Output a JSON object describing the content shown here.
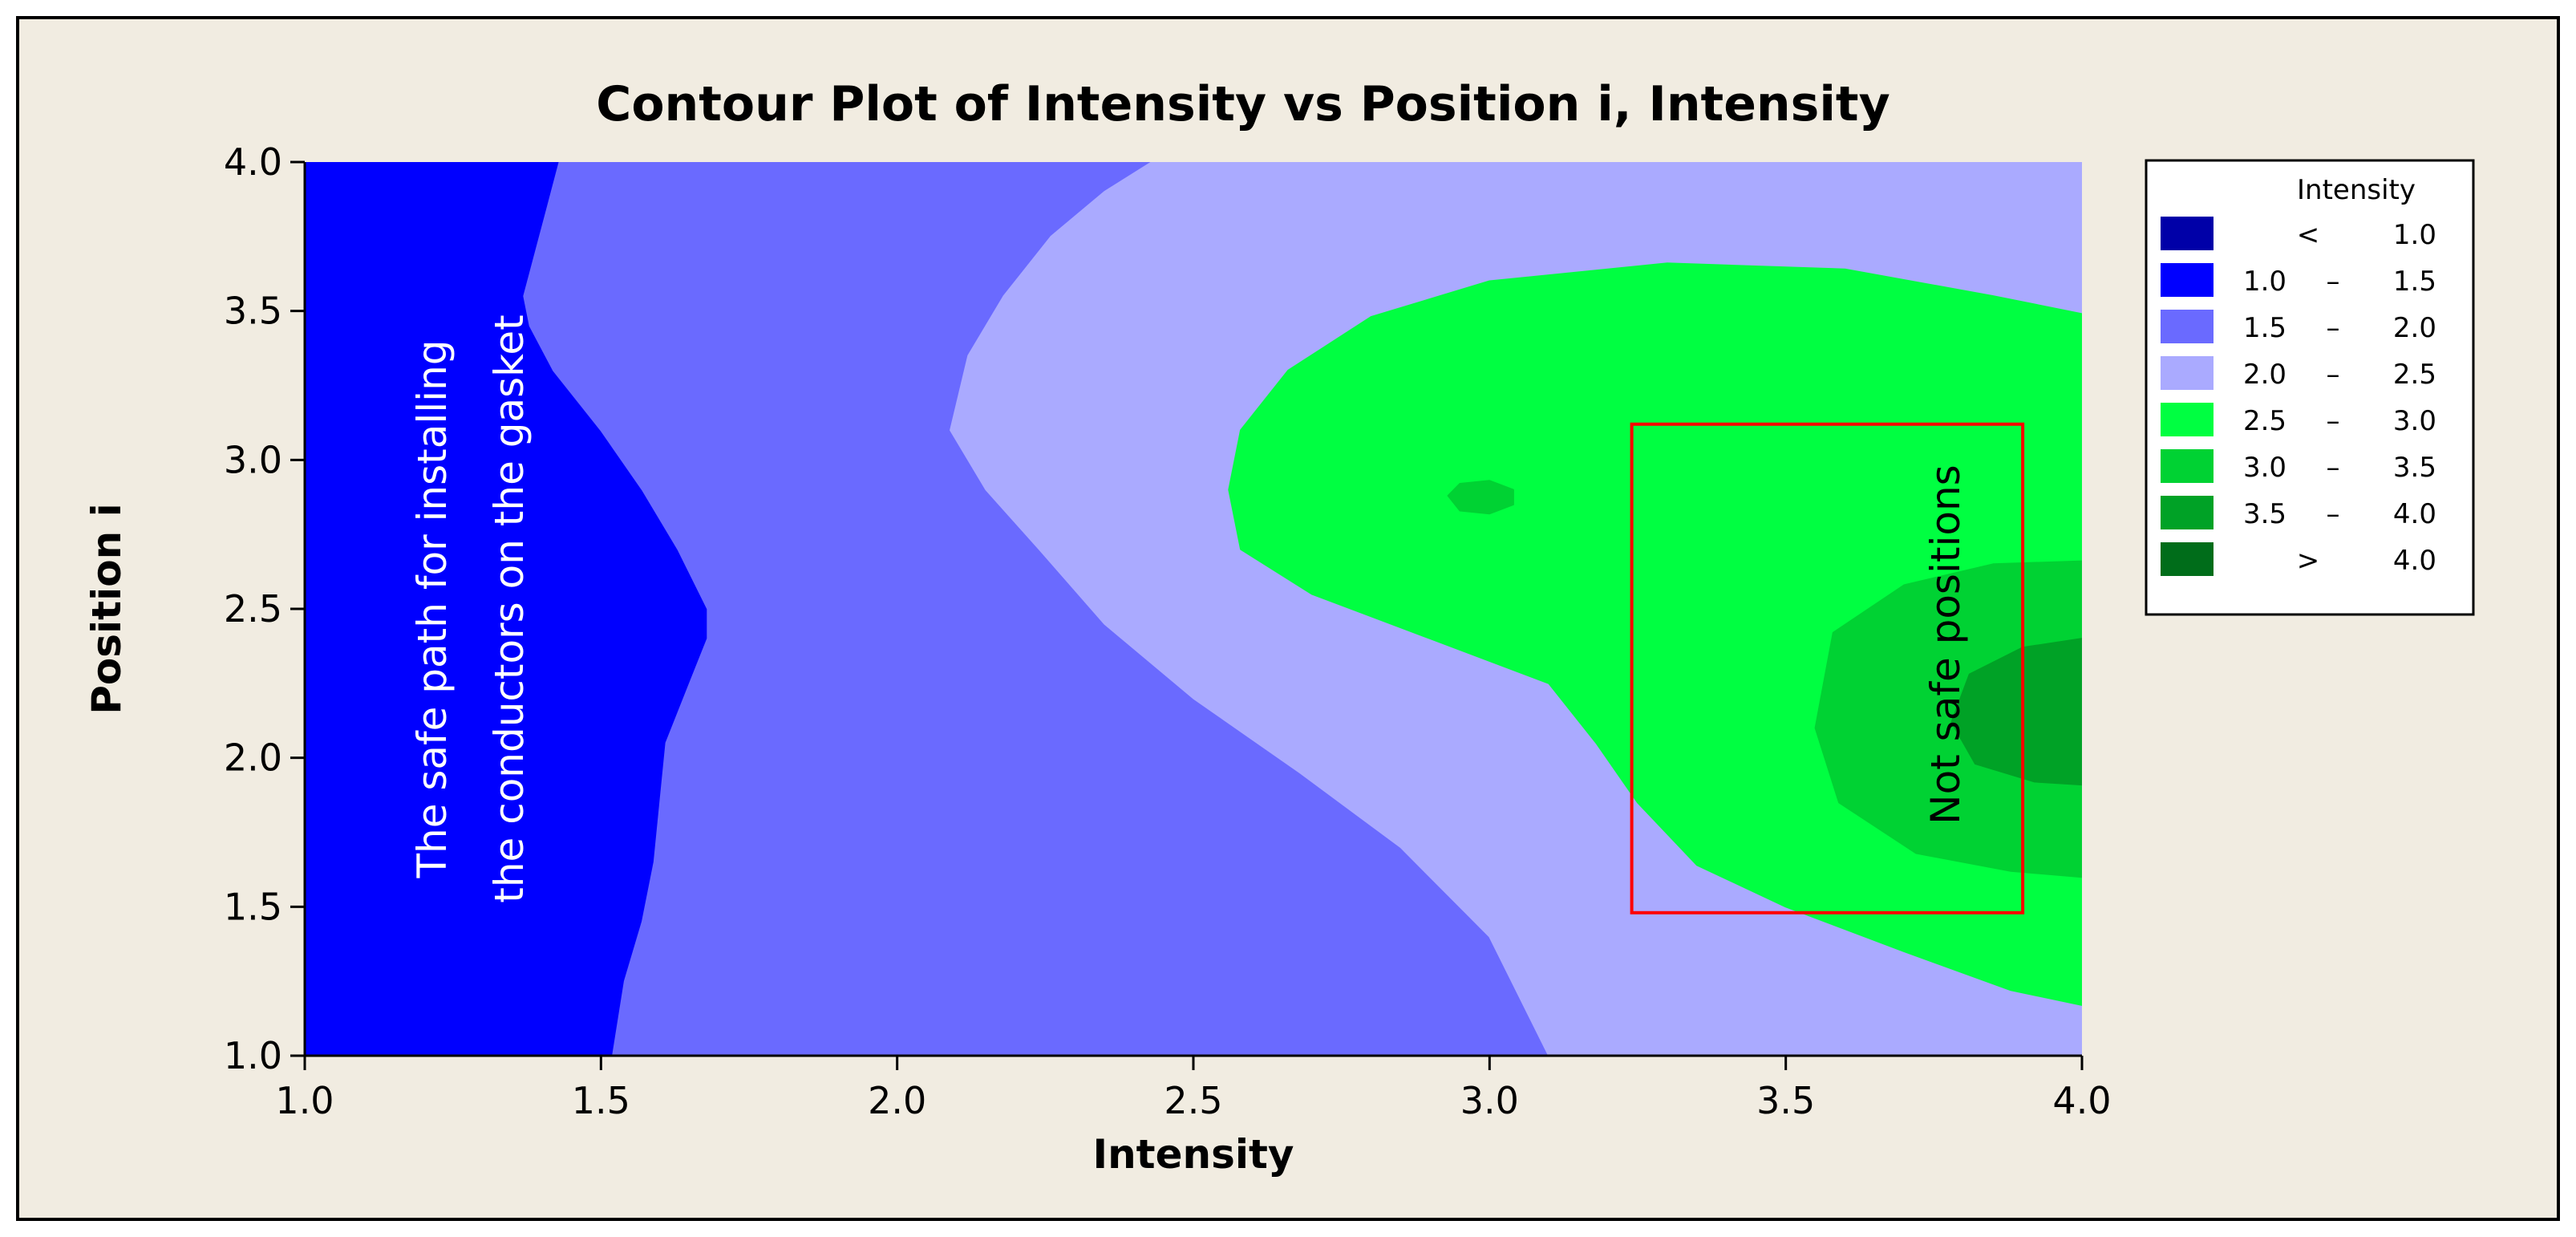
{
  "chart_data": {
    "type": "contour",
    "title": "Contour Plot of Intensity vs Position i, Intensity",
    "xlabel": "Intensity",
    "ylabel": "Position i",
    "xlim": [
      1.0,
      4.0
    ],
    "ylim": [
      1.0,
      4.0
    ],
    "x_ticks": [
      "1.0",
      "1.5",
      "2.0",
      "2.5",
      "3.0",
      "3.5",
      "4.0"
    ],
    "y_ticks": [
      "1.0",
      "1.5",
      "2.0",
      "2.5",
      "3.0",
      "3.5",
      "4.0"
    ],
    "x_tick_values": [
      1.0,
      1.5,
      2.0,
      2.5,
      3.0,
      3.5,
      4.0
    ],
    "y_tick_values": [
      1.0,
      1.5,
      2.0,
      2.5,
      3.0,
      3.5,
      4.0
    ],
    "grid": false,
    "legend_position": "right",
    "legend": {
      "title": "Intensity",
      "items": [
        {
          "low": "<",
          "high": "1.0",
          "color": "#0000a8"
        },
        {
          "low": "1.0",
          "sep": "–",
          "high": "1.5",
          "color": "#0000ff"
        },
        {
          "low": "1.5",
          "sep": "–",
          "high": "2.0",
          "color": "#6a6aff"
        },
        {
          "low": "2.0",
          "sep": "–",
          "high": "2.5",
          "color": "#aaaaff"
        },
        {
          "low": "2.5",
          "sep": "–",
          "high": "3.0",
          "color": "#00ff41"
        },
        {
          "low": "3.0",
          "sep": "–",
          "high": "3.5",
          "color": "#00d233"
        },
        {
          "low": "3.5",
          "sep": "–",
          "high": "4.0",
          "color": "#00a226"
        },
        {
          "low": ">",
          "high": "4.0",
          "color": "#006d1a"
        }
      ]
    },
    "regions": [
      {
        "level": "1.5 – 2.0",
        "color": "#6a6aff",
        "points": [
          [
            1.43,
            4.0
          ],
          [
            1.41,
            3.85
          ],
          [
            1.39,
            3.7
          ],
          [
            1.37,
            3.55
          ],
          [
            1.38,
            3.45
          ],
          [
            1.42,
            3.3
          ],
          [
            1.5,
            3.1
          ],
          [
            1.57,
            2.9
          ],
          [
            1.63,
            2.7
          ],
          [
            1.68,
            2.5
          ],
          [
            1.68,
            2.4
          ],
          [
            1.65,
            2.25
          ],
          [
            1.61,
            2.05
          ],
          [
            1.6,
            1.85
          ],
          [
            1.59,
            1.65
          ],
          [
            1.57,
            1.45
          ],
          [
            1.54,
            1.25
          ],
          [
            1.52,
            1.0
          ],
          [
            4.0,
            1.0
          ],
          [
            4.0,
            4.0
          ]
        ]
      },
      {
        "level": "2.0 – 2.5",
        "color": "#aaaaff",
        "points": [
          [
            2.43,
            4.0
          ],
          [
            2.35,
            3.9
          ],
          [
            2.26,
            3.75
          ],
          [
            2.18,
            3.55
          ],
          [
            2.12,
            3.35
          ],
          [
            2.09,
            3.1
          ],
          [
            2.15,
            2.9
          ],
          [
            2.24,
            2.7
          ],
          [
            2.35,
            2.45
          ],
          [
            2.5,
            2.2
          ],
          [
            2.68,
            1.95
          ],
          [
            2.85,
            1.7
          ],
          [
            3.0,
            1.4
          ],
          [
            3.1,
            1.0
          ],
          [
            4.0,
            1.0
          ],
          [
            4.0,
            4.0
          ]
        ]
      },
      {
        "level": "2.5 – 3.0",
        "color": "#00ff41",
        "points": [
          [
            2.56,
            2.9
          ],
          [
            2.58,
            3.1
          ],
          [
            2.66,
            3.3
          ],
          [
            2.8,
            3.48
          ],
          [
            3.0,
            3.6
          ],
          [
            3.3,
            3.66
          ],
          [
            3.6,
            3.64
          ],
          [
            3.85,
            3.55
          ],
          [
            4.0,
            3.49
          ],
          [
            4.0,
            1.17
          ],
          [
            3.88,
            1.22
          ],
          [
            3.7,
            1.35
          ],
          [
            3.5,
            1.5
          ],
          [
            3.35,
            1.64
          ],
          [
            3.25,
            1.85
          ],
          [
            3.18,
            2.05
          ],
          [
            3.1,
            2.25
          ],
          [
            2.9,
            2.4
          ],
          [
            2.7,
            2.55
          ],
          [
            2.58,
            2.7
          ]
        ]
      },
      {
        "level": "3.0 – 3.5",
        "color": "#00d233",
        "points": [
          [
            4.0,
            2.66
          ],
          [
            3.85,
            2.65
          ],
          [
            3.7,
            2.58
          ],
          [
            3.58,
            2.42
          ],
          [
            3.55,
            2.1
          ],
          [
            3.59,
            1.85
          ],
          [
            3.72,
            1.68
          ],
          [
            3.88,
            1.62
          ],
          [
            4.0,
            1.6
          ]
        ]
      },
      {
        "level": "3.0 – 3.5",
        "color": "#00d233",
        "points": [
          [
            2.93,
            2.88
          ],
          [
            2.95,
            2.92
          ],
          [
            3.0,
            2.93
          ],
          [
            3.04,
            2.9
          ],
          [
            3.04,
            2.85
          ],
          [
            3.0,
            2.82
          ],
          [
            2.95,
            2.83
          ]
        ]
      },
      {
        "level": "3.5 – 4.0",
        "color": "#00a226",
        "points": [
          [
            4.0,
            2.4
          ],
          [
            3.9,
            2.37
          ],
          [
            3.81,
            2.28
          ],
          [
            3.78,
            2.12
          ],
          [
            3.82,
            1.98
          ],
          [
            3.92,
            1.92
          ],
          [
            4.0,
            1.91
          ]
        ]
      }
    ],
    "annotations": [
      {
        "text": "The safe path for installing\nthe conductors on the gasket",
        "x": 1.28,
        "y": 2.5,
        "rotation": -90,
        "color": "#ffffff"
      },
      {
        "text": "Not safe positions",
        "x": 3.77,
        "y": 2.38,
        "rotation": -90,
        "color": "#000000"
      }
    ],
    "highlight_box": {
      "x0": 3.24,
      "x1": 3.9,
      "y0": 1.48,
      "y1": 3.12,
      "color": "#ff0000"
    }
  }
}
